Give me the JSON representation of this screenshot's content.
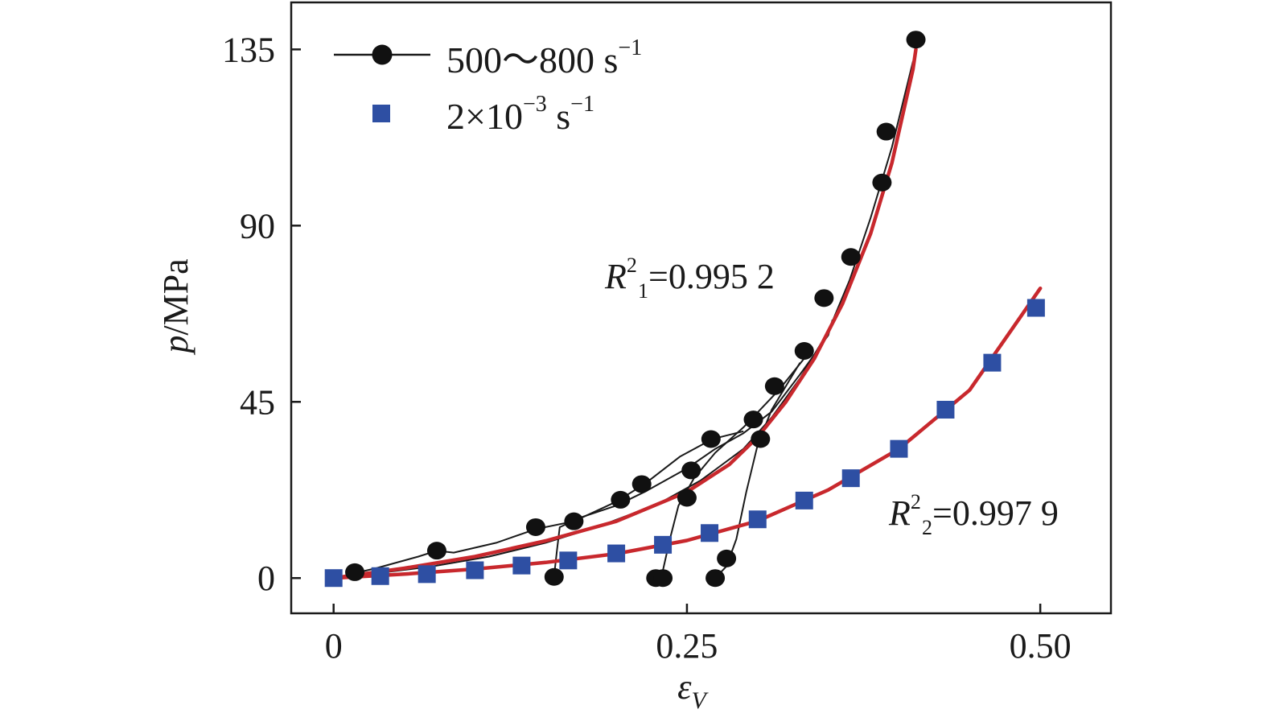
{
  "chart_data": {
    "type": "scatter",
    "xlabel": {
      "symbol": "ε",
      "sub": "V"
    },
    "ylabel": {
      "symbol": "p",
      "unit": "/MPa"
    },
    "xlim": [
      -0.03,
      0.55
    ],
    "ylim": [
      -9,
      147
    ],
    "xticks": [
      0,
      0.25,
      0.5
    ],
    "xtick_labels": [
      "0",
      "0.25",
      "0.50"
    ],
    "yticks": [
      0,
      45,
      90,
      135
    ],
    "ytick_labels": [
      "0",
      "45",
      "90",
      "135"
    ],
    "grid": false,
    "legend_position": "top-left",
    "series": [
      {
        "name": "500～800 s",
        "name_sup": "−1",
        "marker": "circle",
        "color": "#1a1a1a",
        "points": [
          [
            0.015,
            1.5
          ],
          [
            0.073,
            7
          ],
          [
            0.143,
            13
          ],
          [
            0.17,
            14.5
          ],
          [
            0.203,
            20
          ],
          [
            0.218,
            24
          ],
          [
            0.267,
            35.5
          ],
          [
            0.253,
            27.5
          ],
          [
            0.25,
            20.5
          ],
          [
            0.297,
            40.5
          ],
          [
            0.302,
            35.5
          ],
          [
            0.312,
            49
          ],
          [
            0.333,
            58
          ],
          [
            0.347,
            71.5
          ],
          [
            0.366,
            82
          ],
          [
            0.388,
            101
          ],
          [
            0.391,
            114
          ],
          [
            0.412,
            137.5
          ],
          [
            0.156,
            0.3
          ],
          [
            0.228,
            0
          ],
          [
            0.233,
            0
          ],
          [
            0.27,
            0
          ],
          [
            0.278,
            5
          ]
        ],
        "raw_curves": [
          [
            [
              0,
              0
            ],
            [
              0.03,
              2.5
            ],
            [
              0.06,
              5.5
            ],
            [
              0.073,
              7
            ],
            [
              0.085,
              6.5
            ],
            [
              0.115,
              9
            ],
            [
              0.143,
              12.5
            ],
            [
              0.17,
              14.5
            ],
            [
              0.2,
              19.5
            ],
            [
              0.22,
              24
            ],
            [
              0.245,
              31
            ],
            [
              0.268,
              35.5
            ],
            [
              0.29,
              37.5
            ]
          ],
          [
            [
              0,
              0
            ],
            [
              0.03,
              1.2
            ],
            [
              0.07,
              3
            ],
            [
              0.11,
              5.5
            ],
            [
              0.15,
              9
            ],
            [
              0.19,
              13.5
            ],
            [
              0.23,
              19
            ],
            [
              0.26,
              25
            ],
            [
              0.29,
              33
            ],
            [
              0.31,
              41
            ],
            [
              0.33,
              51
            ],
            [
              0.35,
              63
            ],
            [
              0.365,
              76
            ],
            [
              0.38,
              92
            ],
            [
              0.395,
              110
            ],
            [
              0.41,
              132
            ]
          ],
          [
            [
              0.156,
              0.5
            ],
            [
              0.158,
              7
            ],
            [
              0.16,
              13
            ],
            [
              0.175,
              15.5
            ],
            [
              0.2,
              18.5
            ],
            [
              0.22,
              22
            ],
            [
              0.25,
              28
            ],
            [
              0.27,
              33
            ],
            [
              0.29,
              37
            ],
            [
              0.31,
              42.5
            ],
            [
              0.33,
              52
            ],
            [
              0.35,
              62
            ],
            [
              0.353,
              66
            ]
          ],
          [
            [
              0.228,
              0
            ],
            [
              0.233,
              2
            ],
            [
              0.238,
              10
            ],
            [
              0.244,
              18.5
            ],
            [
              0.255,
              25.5
            ],
            [
              0.27,
              32
            ],
            [
              0.29,
              38.5
            ],
            [
              0.315,
              48
            ],
            [
              0.335,
              57
            ]
          ],
          [
            [
              0.27,
              0
            ],
            [
              0.278,
              3
            ],
            [
              0.285,
              10
            ],
            [
              0.292,
              22
            ],
            [
              0.3,
              34
            ],
            [
              0.31,
              43
            ],
            [
              0.33,
              55
            ]
          ]
        ],
        "fit_curve": {
          "r2_label": "R",
          "r2_sub": "1",
          "r2_sup": "2",
          "r2_value": "=0.995 2",
          "color": "#c8282d",
          "points": [
            [
              0,
              0
            ],
            [
              0.05,
              2.5
            ],
            [
              0.1,
              5.5
            ],
            [
              0.15,
              9.5
            ],
            [
              0.2,
              14.5
            ],
            [
              0.25,
              22
            ],
            [
              0.28,
              29
            ],
            [
              0.3,
              36
            ],
            [
              0.32,
              45
            ],
            [
              0.34,
              56
            ],
            [
              0.36,
              70
            ],
            [
              0.38,
              88
            ],
            [
              0.395,
              106
            ],
            [
              0.41,
              130
            ],
            [
              0.412,
              135
            ]
          ]
        }
      },
      {
        "name": "2×10",
        "name_sup": "−3",
        "name_suffix": " s",
        "name_suffix_sup": "−1",
        "marker": "square",
        "color": "#2e4fa3",
        "points": [
          [
            0,
            0
          ],
          [
            0.033,
            0.5
          ],
          [
            0.066,
            1
          ],
          [
            0.1,
            2
          ],
          [
            0.133,
            3.2
          ],
          [
            0.166,
            4.5
          ],
          [
            0.2,
            6.3
          ],
          [
            0.233,
            8.5
          ],
          [
            0.266,
            11.5
          ],
          [
            0.3,
            15
          ],
          [
            0.333,
            19.8
          ],
          [
            0.366,
            25.5
          ],
          [
            0.4,
            33
          ],
          [
            0.433,
            43
          ],
          [
            0.466,
            55
          ],
          [
            0.497,
            69
          ]
        ],
        "fit_curve": {
          "r2_label": "R",
          "r2_sub": "2",
          "r2_sup": "2",
          "r2_value": "=0.997 9",
          "color": "#c8282d",
          "points": [
            [
              0,
              0
            ],
            [
              0.05,
              1
            ],
            [
              0.1,
              2.3
            ],
            [
              0.15,
              4
            ],
            [
              0.2,
              6.2
            ],
            [
              0.25,
              9.6
            ],
            [
              0.3,
              14.6
            ],
            [
              0.35,
              22.5
            ],
            [
              0.4,
              33
            ],
            [
              0.45,
              48
            ],
            [
              0.5,
              74
            ]
          ]
        }
      }
    ]
  }
}
